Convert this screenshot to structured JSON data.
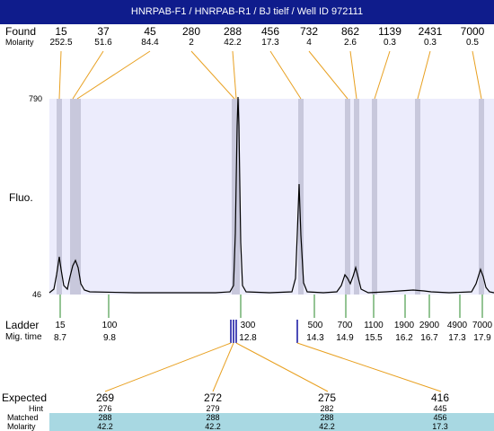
{
  "title": "HNRPAB-F1 / HNRPAB-R1 / BJ tielf / Well ID 972111",
  "found": {
    "label": "Found",
    "molarity_label": "Molarity",
    "values": [
      "15",
      "37",
      "45",
      "280",
      "288",
      "456",
      "732",
      "862",
      "1139",
      "2431",
      "7000"
    ],
    "molarity": [
      "252.5",
      "51.6",
      "84.4",
      "2",
      "42.2",
      "17.3",
      "4",
      "2.6",
      "0.3",
      "0.3",
      "0.5"
    ]
  },
  "axis": {
    "ymax": "790",
    "ymin": "46",
    "label": "Fluo."
  },
  "ladder": {
    "label": "Ladder",
    "mig_label": "Mig. time",
    "sizes": [
      "15",
      "100",
      "300",
      "500",
      "700",
      "1100",
      "1900",
      "2900",
      "4900",
      "7000"
    ],
    "times": [
      "8.7",
      "9.8",
      "12.8",
      "14.3",
      "14.9",
      "15.5",
      "16.2",
      "16.7",
      "17.3",
      "17.9"
    ]
  },
  "expected": {
    "label": "Expected",
    "row_labels": {
      "hint": "Hint",
      "matched": "Matched",
      "molarity": "Molarity"
    },
    "columns": [
      {
        "expected": "269",
        "hint": "276",
        "matched": "288",
        "molarity": "42.2"
      },
      {
        "expected": "272",
        "hint": "279",
        "matched": "288",
        "molarity": "42.2"
      },
      {
        "expected": "275",
        "hint": "282",
        "matched": "288",
        "molarity": "42.2"
      },
      {
        "expected": "416",
        "hint": "445",
        "matched": "456",
        "molarity": "17.3"
      }
    ]
  },
  "colors": {
    "title_bg": "#0f1c8c",
    "plot_bg": "#ececfc",
    "band": "#c8c8dc",
    "connector": "#e8a020",
    "ladder_tick": "#2a8a2a",
    "marker": "#1010a0",
    "table_highlight": "#a8d8e2"
  }
}
